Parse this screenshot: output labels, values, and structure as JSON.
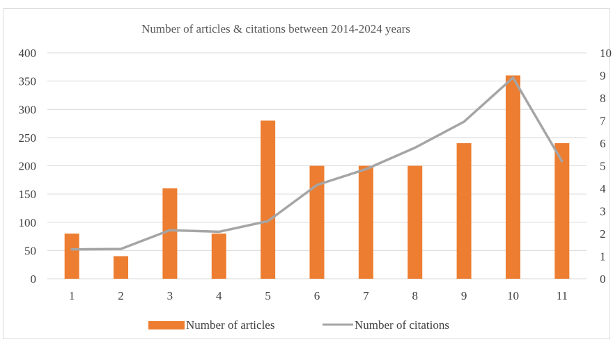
{
  "chart_data": {
    "type": "bar",
    "title": "Number of articles & citations between 2014-2024 years",
    "categories": [
      "1",
      "2",
      "3",
      "4",
      "5",
      "6",
      "7",
      "8",
      "9",
      "10",
      "11"
    ],
    "series": [
      {
        "name": "Number of articles",
        "type": "bar",
        "axis": "left",
        "color": "#ED7D31",
        "values": [
          80,
          40,
          160,
          80,
          280,
          200,
          200,
          200,
          240,
          360,
          240
        ]
      },
      {
        "name": "Number of citations",
        "type": "line",
        "axis": "right",
        "color": "#A5A5A5",
        "values": [
          1.3,
          1.32,
          2.15,
          2.08,
          2.55,
          4.15,
          4.85,
          5.8,
          6.95,
          8.9,
          5.2
        ]
      }
    ],
    "ylim_left": [
      0,
      400
    ],
    "yticks_left": [
      "0",
      "50",
      "100",
      "150",
      "200",
      "250",
      "300",
      "350",
      "400"
    ],
    "ylim_right": [
      0,
      10
    ],
    "yticks_right": [
      "0",
      "1",
      "2",
      "3",
      "4",
      "5",
      "6",
      "7",
      "8",
      "9",
      "10"
    ],
    "grid": true,
    "legend_position": "bottom"
  }
}
